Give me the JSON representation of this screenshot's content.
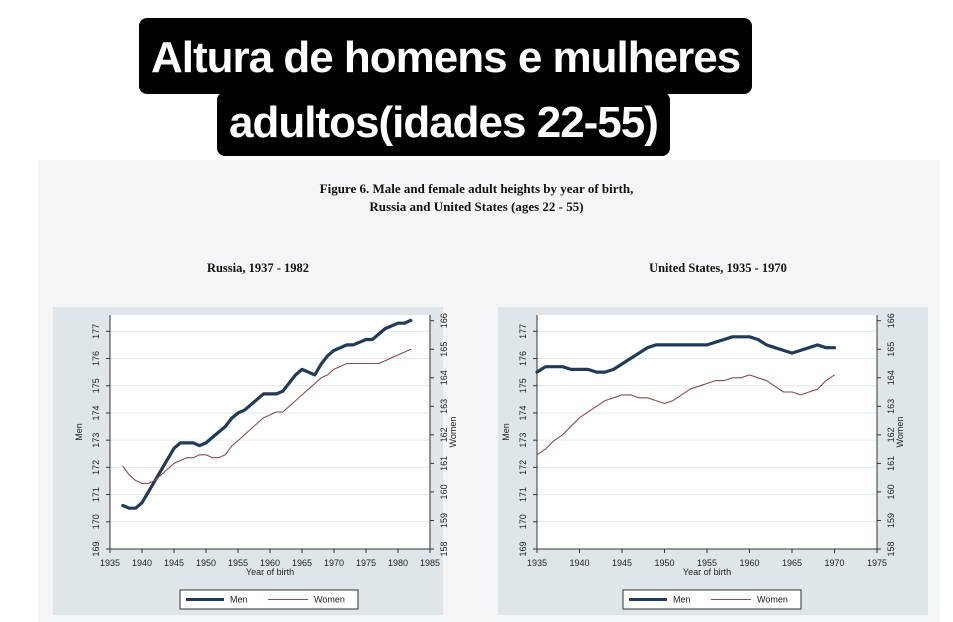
{
  "banner": {
    "line1": "Altura de homens e mulheres",
    "line2": "adultos(idades 22-55)"
  },
  "figure": {
    "title_line1": "Figure 6.  Male and female adult heights by year of birth,",
    "title_line2": "Russia and United States (ages 22 - 55)"
  },
  "colors": {
    "men": "#1f3b57",
    "women": "#8c4a4a",
    "plot_bg": "#ffffff",
    "frame_bg": "#dfe6ea"
  },
  "chart_data": [
    {
      "type": "line",
      "title": "Russia, 1937 - 1982",
      "xlabel": "Year of birth",
      "ylabel_left": "Men",
      "ylabel_right": "Women",
      "xlim": [
        1935,
        1985
      ],
      "xticks": [
        1935,
        1940,
        1945,
        1950,
        1955,
        1960,
        1965,
        1970,
        1975,
        1980,
        1985
      ],
      "ylim_left": [
        169,
        177.6
      ],
      "yticks_left": [
        169,
        170,
        171,
        172,
        173,
        174,
        175,
        176,
        177
      ],
      "ylim_right": [
        158,
        166.2
      ],
      "yticks_right": [
        158,
        159,
        160,
        161,
        162,
        163,
        164,
        165,
        166
      ],
      "grid": true,
      "legend": "bottom",
      "series": [
        {
          "name": "Men",
          "axis": "left",
          "x": [
            1937,
            1938,
            1939,
            1940,
            1941,
            1942,
            1943,
            1944,
            1945,
            1946,
            1947,
            1948,
            1949,
            1950,
            1951,
            1952,
            1953,
            1954,
            1955,
            1956,
            1957,
            1958,
            1959,
            1960,
            1961,
            1962,
            1963,
            1964,
            1965,
            1966,
            1967,
            1968,
            1969,
            1970,
            1971,
            1972,
            1973,
            1974,
            1975,
            1976,
            1977,
            1978,
            1979,
            1980,
            1981,
            1982
          ],
          "y": [
            170.6,
            170.5,
            170.5,
            170.7,
            171.1,
            171.5,
            171.9,
            172.3,
            172.7,
            172.9,
            172.9,
            172.9,
            172.8,
            172.9,
            173.1,
            173.3,
            173.5,
            173.8,
            174.0,
            174.1,
            174.3,
            174.5,
            174.7,
            174.7,
            174.7,
            174.8,
            175.1,
            175.4,
            175.6,
            175.5,
            175.4,
            175.8,
            176.1,
            176.3,
            176.4,
            176.5,
            176.5,
            176.6,
            176.7,
            176.7,
            176.9,
            177.1,
            177.2,
            177.3,
            177.3,
            177.4
          ]
        },
        {
          "name": "Women",
          "axis": "right",
          "x": [
            1937,
            1938,
            1939,
            1940,
            1941,
            1942,
            1943,
            1944,
            1945,
            1946,
            1947,
            1948,
            1949,
            1950,
            1951,
            1952,
            1953,
            1954,
            1955,
            1956,
            1957,
            1958,
            1959,
            1960,
            1961,
            1962,
            1963,
            1964,
            1965,
            1966,
            1967,
            1968,
            1969,
            1970,
            1971,
            1972,
            1973,
            1974,
            1975,
            1976,
            1977,
            1978,
            1979,
            1980,
            1981,
            1982
          ],
          "y": [
            160.9,
            160.6,
            160.4,
            160.3,
            160.3,
            160.4,
            160.6,
            160.8,
            161.0,
            161.1,
            161.2,
            161.2,
            161.3,
            161.3,
            161.2,
            161.2,
            161.3,
            161.6,
            161.8,
            162.0,
            162.2,
            162.4,
            162.6,
            162.7,
            162.8,
            162.8,
            163.0,
            163.2,
            163.4,
            163.6,
            163.8,
            164.0,
            164.1,
            164.3,
            164.4,
            164.5,
            164.5,
            164.5,
            164.5,
            164.5,
            164.5,
            164.6,
            164.7,
            164.8,
            164.9,
            165.0
          ]
        }
      ]
    },
    {
      "type": "line",
      "title": "United States, 1935 - 1970",
      "xlabel": "Year of birth",
      "ylabel_left": "Men",
      "ylabel_right": "Women",
      "xlim": [
        1935,
        1975
      ],
      "xticks": [
        1935,
        1940,
        1945,
        1950,
        1955,
        1960,
        1965,
        1970,
        1975
      ],
      "ylim_left": [
        169,
        177.6
      ],
      "yticks_left": [
        169,
        170,
        171,
        172,
        173,
        174,
        175,
        176,
        177
      ],
      "ylim_right": [
        158,
        166.2
      ],
      "yticks_right": [
        158,
        159,
        160,
        161,
        162,
        163,
        164,
        165,
        166
      ],
      "grid": true,
      "legend": "bottom",
      "series": [
        {
          "name": "Men",
          "axis": "left",
          "x": [
            1935,
            1936,
            1937,
            1938,
            1939,
            1940,
            1941,
            1942,
            1943,
            1944,
            1945,
            1946,
            1947,
            1948,
            1949,
            1950,
            1951,
            1952,
            1953,
            1954,
            1955,
            1956,
            1957,
            1958,
            1959,
            1960,
            1961,
            1962,
            1963,
            1964,
            1965,
            1966,
            1967,
            1968,
            1969,
            1970
          ],
          "y": [
            175.5,
            175.7,
            175.7,
            175.7,
            175.6,
            175.6,
            175.6,
            175.5,
            175.5,
            175.6,
            175.8,
            176.0,
            176.2,
            176.4,
            176.5,
            176.5,
            176.5,
            176.5,
            176.5,
            176.5,
            176.5,
            176.6,
            176.7,
            176.8,
            176.8,
            176.8,
            176.7,
            176.5,
            176.4,
            176.3,
            176.2,
            176.3,
            176.4,
            176.5,
            176.4,
            176.4
          ]
        },
        {
          "name": "Women",
          "axis": "right",
          "x": [
            1935,
            1936,
            1937,
            1938,
            1939,
            1940,
            1941,
            1942,
            1943,
            1944,
            1945,
            1946,
            1947,
            1948,
            1949,
            1950,
            1951,
            1952,
            1953,
            1954,
            1955,
            1956,
            1957,
            1958,
            1959,
            1960,
            1961,
            1962,
            1963,
            1964,
            1965,
            1966,
            1967,
            1968,
            1969,
            1970
          ],
          "y": [
            161.3,
            161.5,
            161.8,
            162.0,
            162.3,
            162.6,
            162.8,
            163.0,
            163.2,
            163.3,
            163.4,
            163.4,
            163.3,
            163.3,
            163.2,
            163.1,
            163.2,
            163.4,
            163.6,
            163.7,
            163.8,
            163.9,
            163.9,
            164.0,
            164.0,
            164.1,
            164.0,
            163.9,
            163.7,
            163.5,
            163.5,
            163.4,
            163.5,
            163.6,
            163.9,
            164.1
          ]
        }
      ]
    }
  ]
}
